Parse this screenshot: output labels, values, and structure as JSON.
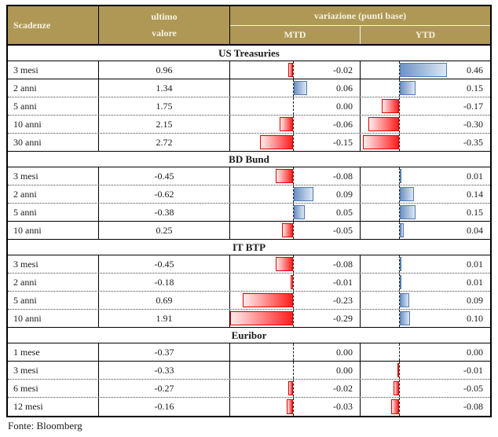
{
  "header": {
    "scadenze": "Scadenze",
    "ultimo_line1": "ultimo",
    "ultimo_line2": "valore",
    "variazione": "variazione (punti base)",
    "mtd": "MTD",
    "ytd": "YTD"
  },
  "footer": {
    "source": "Fonte: Bloomberg"
  },
  "colors": {
    "header_bg": "#AF9855",
    "header_text": "#F7F2E3",
    "negative_bar": "#FF1E1E",
    "negative_bar_light": "#FFEDED",
    "negative_bar_border": "#E00000",
    "positive_bar": "#6D92C4",
    "positive_bar_light": "#DDE7F3",
    "positive_bar_border": "#4F7AB7"
  },
  "chart_data": {
    "type": "table",
    "title": "",
    "columns": [
      "Scadenze",
      "ultimo valore",
      "variazione (punti base) - MTD",
      "variazione (punti base) - YTD"
    ],
    "bar_style": "excel-data-bars, red negative left of dashed zero axis, blue positive right of dashed zero axis",
    "sections": [
      {
        "name": "US Treasuries",
        "rows": [
          {
            "label": "3 mesi",
            "ultimo": "0.96",
            "mtd": "-0.02",
            "ytd": "0.46",
            "divider": "solid"
          },
          {
            "label": "2 anni",
            "ultimo": "1.34",
            "mtd": "0.06",
            "ytd": "0.15",
            "divider": "dotted"
          },
          {
            "label": "5 anni",
            "ultimo": "1.75",
            "mtd": "0.00",
            "ytd": "-0.17",
            "divider": "dotted"
          },
          {
            "label": "10 anni",
            "ultimo": "2.15",
            "mtd": "-0.06",
            "ytd": "-0.30",
            "divider": "dotted"
          },
          {
            "label": "30 anni",
            "ultimo": "2.72",
            "mtd": "-0.15",
            "ytd": "-0.35",
            "divider": "solid"
          }
        ]
      },
      {
        "name": "BD Bund",
        "rows": [
          {
            "label": "3 mesi",
            "ultimo": "-0.45",
            "mtd": "-0.08",
            "ytd": "0.01",
            "divider": "dotted"
          },
          {
            "label": "2 anni",
            "ultimo": "-0.62",
            "mtd": "0.09",
            "ytd": "0.14",
            "divider": "dotted"
          },
          {
            "label": "5 anni",
            "ultimo": "-0.38",
            "mtd": "0.05",
            "ytd": "0.15",
            "divider": "solid"
          },
          {
            "label": "10 anni",
            "ultimo": "0.25",
            "mtd": "-0.05",
            "ytd": "0.04",
            "divider": "solid"
          }
        ]
      },
      {
        "name": "IT BTP",
        "rows": [
          {
            "label": "3 mesi",
            "ultimo": "-0.45",
            "mtd": "-0.08",
            "ytd": "0.01",
            "divider": "dotted"
          },
          {
            "label": "2 anni",
            "ultimo": "-0.18",
            "mtd": "-0.01",
            "ytd": "0.01",
            "divider": "dotted"
          },
          {
            "label": "5 anni",
            "ultimo": "0.69",
            "mtd": "-0.23",
            "ytd": "0.09",
            "divider": "dotted"
          },
          {
            "label": "10 anni",
            "ultimo": "1.91",
            "mtd": "-0.29",
            "ytd": "0.10",
            "divider": "solid"
          }
        ]
      },
      {
        "name": "Euribor",
        "rows": [
          {
            "label": "1 mese",
            "ultimo": "-0.37",
            "mtd": "0.00",
            "ytd": "0.00",
            "divider": "solid"
          },
          {
            "label": "3 mesi",
            "ultimo": "-0.33",
            "mtd": "0.00",
            "ytd": "-0.01",
            "divider": "dotted"
          },
          {
            "label": "6 mesi",
            "ultimo": "-0.27",
            "mtd": "-0.02",
            "ytd": "-0.05",
            "divider": "dotted"
          },
          {
            "label": "12 mesi",
            "ultimo": "-0.16",
            "mtd": "-0.03",
            "ytd": "-0.08",
            "divider": "none"
          }
        ]
      }
    ],
    "source": "Fonte: Bloomberg"
  }
}
